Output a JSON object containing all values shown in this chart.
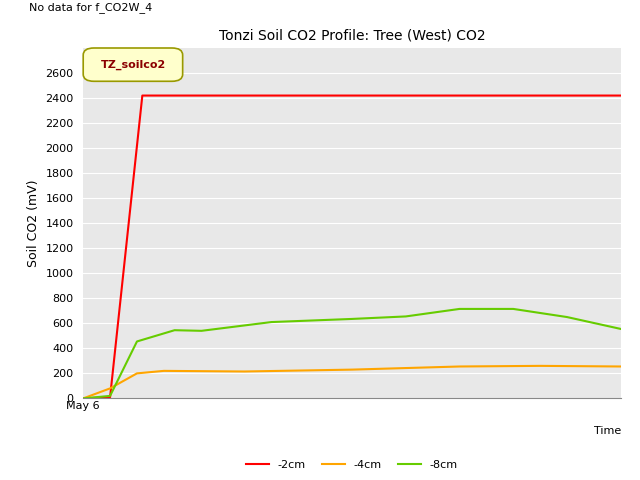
{
  "title": "Tonzi Soil CO2 Profile: Tree (West) CO2",
  "no_data_text": "No data for f_CO2W_4",
  "ylabel": "Soil CO2 (mV)",
  "xlabel": "Time",
  "ylim": [
    0,
    2800
  ],
  "yticks": [
    0,
    200,
    400,
    600,
    800,
    1000,
    1200,
    1400,
    1600,
    1800,
    2000,
    2200,
    2400,
    2600
  ],
  "xstart_label": "May 6",
  "legend_label": "TZ_soilco2",
  "legend_box_color": "#ffffcc",
  "legend_box_edge": "#999900",
  "bg_color": "#e8e8e8",
  "grid_color": "#ffffff",
  "series": {
    "neg2cm": {
      "color": "#ff0000",
      "label": "-2cm",
      "x": [
        0,
        0.05,
        0.11,
        0.14,
        1.0
      ],
      "y": [
        0,
        10,
        2420,
        2420,
        2420
      ]
    },
    "neg4cm": {
      "color": "#ffa500",
      "label": "-4cm",
      "x": [
        0,
        0.05,
        0.1,
        0.15,
        0.3,
        0.5,
        0.7,
        0.85,
        1.0
      ],
      "y": [
        0,
        80,
        200,
        220,
        215,
        230,
        255,
        260,
        255
      ]
    },
    "neg8cm": {
      "color": "#66cc00",
      "label": "-8cm",
      "x": [
        0,
        0.05,
        0.1,
        0.17,
        0.22,
        0.35,
        0.5,
        0.6,
        0.7,
        0.8,
        0.9,
        1.0
      ],
      "y": [
        0,
        20,
        455,
        545,
        540,
        610,
        635,
        655,
        715,
        715,
        650,
        555
      ]
    }
  },
  "line_width": 1.5,
  "figsize": [
    6.4,
    4.8
  ],
  "dpi": 100
}
